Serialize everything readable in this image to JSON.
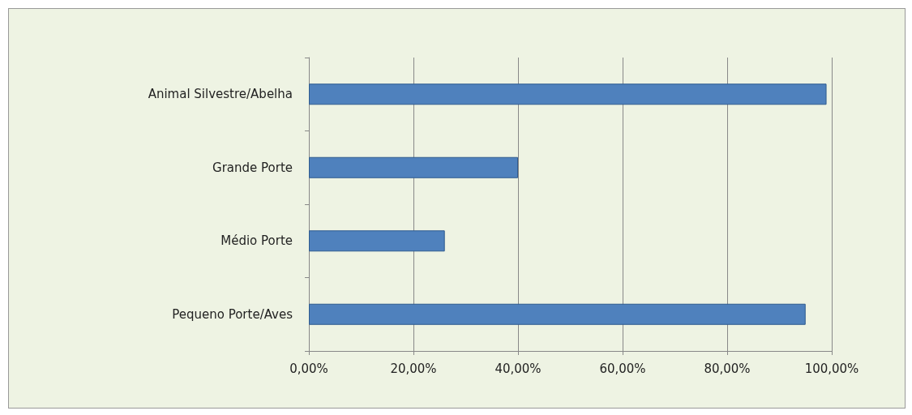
{
  "chart_data": {
    "type": "bar",
    "orientation": "horizontal",
    "categories": [
      "Animal Silvestre/Abelha",
      "Grande Porte",
      "Médio Porte",
      "Pequeno Porte/Aves"
    ],
    "values": [
      99,
      40,
      26,
      95
    ],
    "color": "#4f81bd",
    "xlim": [
      0,
      100
    ],
    "xticks": [
      {
        "value": 0,
        "label": "0,00%"
      },
      {
        "value": 20,
        "label": "20,00%"
      },
      {
        "value": 40,
        "label": "40,00%"
      },
      {
        "value": 60,
        "label": "60,00%"
      },
      {
        "value": 80,
        "label": "80,00%"
      },
      {
        "value": 100,
        "label": "100,00%"
      }
    ],
    "grid": "x"
  }
}
